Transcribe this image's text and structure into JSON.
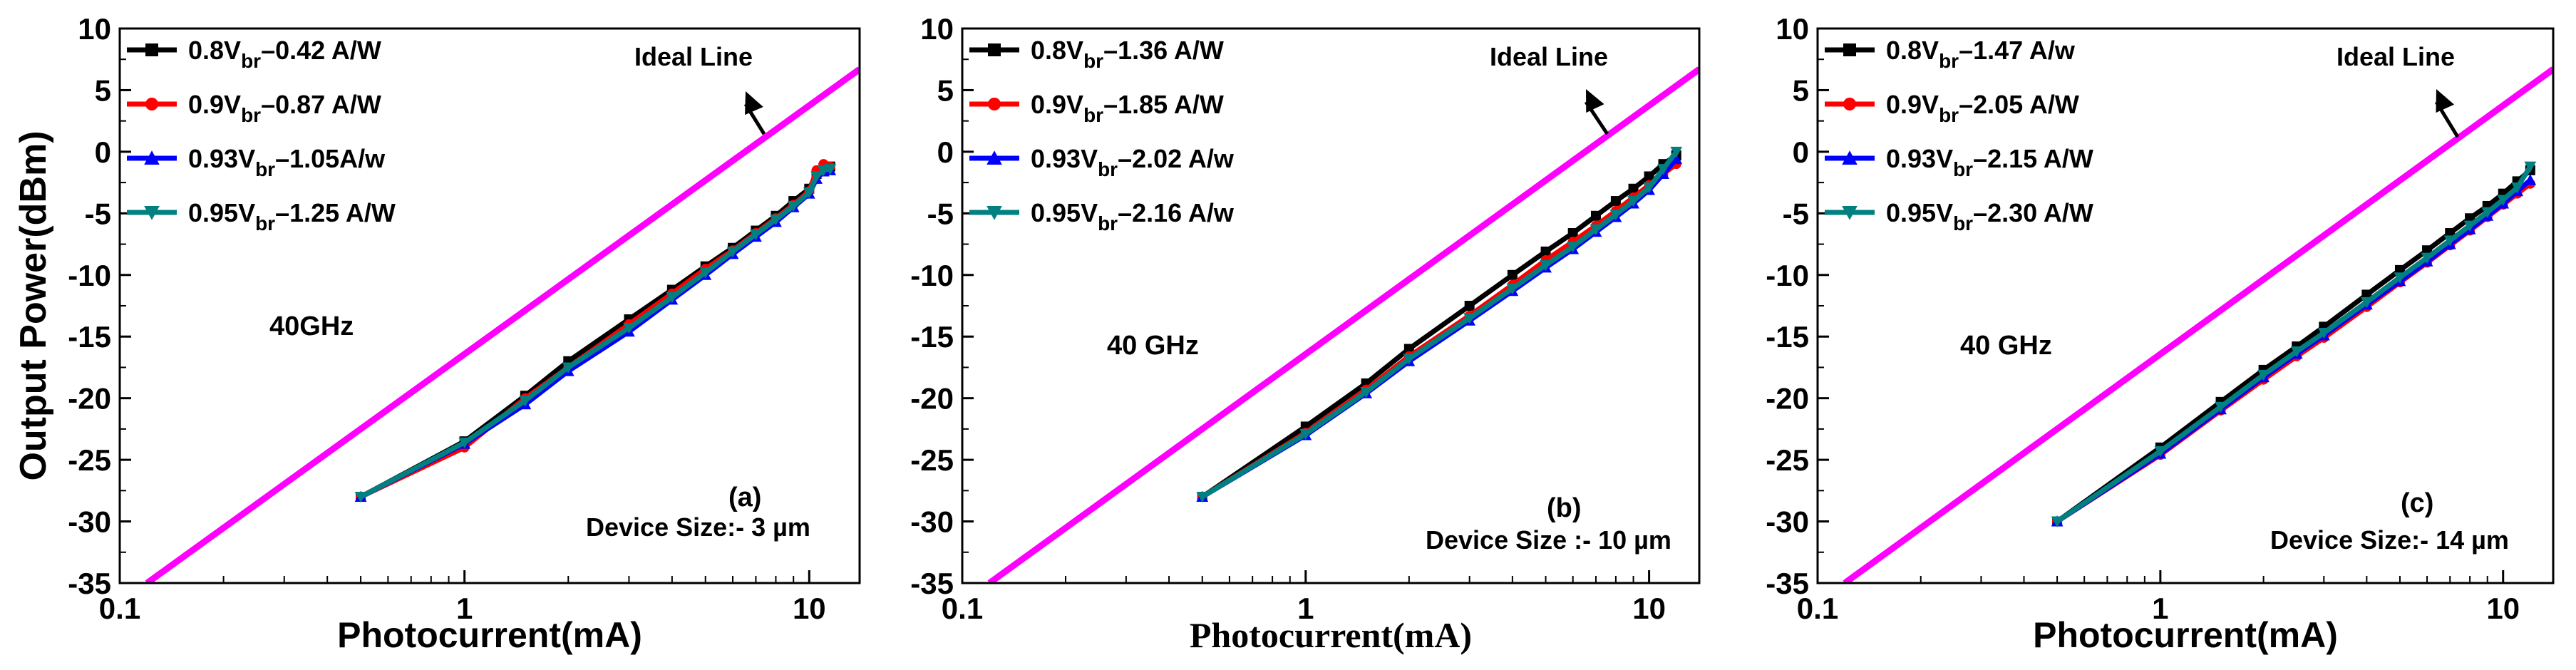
{
  "chart_data": [
    {
      "type": "line",
      "panel_label": "(a)",
      "xlabel": "Photocurrent(mA)",
      "ylabel": "Output Power(dBm)",
      "x_scale": "log",
      "xlim": [
        0.1,
        14
      ],
      "ylim": [
        -35,
        10
      ],
      "x_ticks": [
        "0.1",
        "1",
        "10"
      ],
      "y_ticks": [
        "10",
        "5",
        "0",
        "-5",
        "-10",
        "-15",
        "-20",
        "-25",
        "-30",
        "-35"
      ],
      "legend_position": "top-left",
      "frequency_text": "40GHz",
      "device_text": "Device Size:- 3 µm",
      "ideal_label": "Ideal Line",
      "ideal_line": {
        "color": "#ff00ff",
        "x": [
          0.12,
          14
        ],
        "y": [
          -35,
          6.7
        ]
      },
      "series": [
        {
          "legend": {
            "a": "0.8V",
            "sub": "br",
            "b": "–0.42 A/W"
          },
          "color": "#000000",
          "marker": "square",
          "x": [
            0.5,
            1,
            1.5,
            2,
            3,
            4,
            5,
            6,
            7,
            8,
            9,
            10,
            10.5,
            11,
            11.5
          ],
          "y": [
            -28,
            -23.5,
            -19.8,
            -17,
            -13.6,
            -11.2,
            -9.3,
            -7.8,
            -6.4,
            -5.2,
            -4,
            -3,
            -1.8,
            -1.3,
            -1.2
          ]
        },
        {
          "legend": {
            "a": "0.9V",
            "sub": "br",
            "b": "–0.87 A/W"
          },
          "color": "#ff0000",
          "marker": "circle",
          "x": [
            0.5,
            1,
            1.5,
            2,
            3,
            4,
            5,
            6,
            7,
            8,
            9,
            10,
            10.5,
            11,
            11.5
          ],
          "y": [
            -28,
            -24,
            -20,
            -17.5,
            -14,
            -11.5,
            -9.5,
            -8,
            -6.6,
            -5.4,
            -4.3,
            -3.2,
            -1.5,
            -1,
            -1.2
          ]
        },
        {
          "legend": {
            "a": "0.93V",
            "sub": "br",
            "b": "–1.05A/w"
          },
          "color": "#0000ff",
          "marker": "triangle",
          "x": [
            0.5,
            1,
            1.5,
            2,
            3,
            4,
            5,
            6,
            7,
            8,
            9,
            10,
            10.5,
            11,
            11.5
          ],
          "y": [
            -28,
            -23.7,
            -20.5,
            -17.8,
            -14.6,
            -12,
            -10,
            -8.3,
            -6.9,
            -5.7,
            -4.5,
            -3.4,
            -2.2,
            -1.6,
            -1.5
          ]
        },
        {
          "legend": {
            "a": "0.95V",
            "sub": "br",
            "b": "–1.25 A/W"
          },
          "color": "#008080",
          "marker": "triangle-down",
          "x": [
            0.5,
            1,
            1.5,
            2,
            3,
            4,
            5,
            6,
            7,
            8,
            9,
            10,
            10.5,
            11,
            11.5
          ],
          "y": [
            -28,
            -23.6,
            -20.2,
            -17.5,
            -14.3,
            -11.8,
            -9.8,
            -8.1,
            -6.7,
            -5.5,
            -4.4,
            -3.3,
            -2,
            -1.5,
            -1.4
          ]
        }
      ]
    },
    {
      "type": "line",
      "panel_label": "(b)",
      "xlabel": "Photocurrent(mA)",
      "ylabel": "",
      "x_scale": "log",
      "xlim": [
        0.1,
        14
      ],
      "ylim": [
        -35,
        10
      ],
      "x_ticks": [
        "0.1",
        "1",
        "10"
      ],
      "y_ticks": [
        "10",
        "5",
        "0",
        "-5",
        "-10",
        "-15",
        "-20",
        "-25",
        "-30",
        "-35"
      ],
      "legend_position": "top-left",
      "frequency_text": "40 GHz",
      "device_text": "Device Size :- 10 µm",
      "ideal_label": "Ideal Line",
      "ideal_line": {
        "color": "#ff00ff",
        "x": [
          0.12,
          14
        ],
        "y": [
          -35,
          6.7
        ]
      },
      "series": [
        {
          "legend": {
            "a": "0.8V",
            "sub": "br",
            "b": "–1.36 A/W"
          },
          "color": "#000000",
          "marker": "square",
          "x": [
            0.5,
            1,
            1.5,
            2,
            3,
            4,
            5,
            6,
            7,
            8,
            9,
            10,
            11,
            12
          ],
          "y": [
            -28,
            -22.3,
            -18.8,
            -16,
            -12.5,
            -10,
            -8.1,
            -6.6,
            -5.2,
            -4,
            -3,
            -2,
            -1,
            -0.3
          ]
        },
        {
          "legend": {
            "a": "0.9V",
            "sub": "br",
            "b": "–1.85 A/W"
          },
          "color": "#ff0000",
          "marker": "circle",
          "x": [
            0.5,
            1,
            1.5,
            2,
            3,
            4,
            5,
            6,
            7,
            8,
            9,
            10,
            11,
            12
          ],
          "y": [
            -28,
            -22.8,
            -19.3,
            -16.6,
            -13.3,
            -10.8,
            -8.8,
            -7.3,
            -6,
            -4.8,
            -3.7,
            -2.7,
            -1.8,
            -1
          ]
        },
        {
          "legend": {
            "a": "0.93V",
            "sub": "br",
            "b": "–2.02 A/w"
          },
          "color": "#0000ff",
          "marker": "triangle",
          "x": [
            0.5,
            1,
            1.5,
            2,
            3,
            4,
            5,
            6,
            7,
            8,
            9,
            10,
            11,
            12
          ],
          "y": [
            -28,
            -23,
            -19.6,
            -17,
            -13.7,
            -11.3,
            -9.4,
            -7.9,
            -6.5,
            -5.3,
            -4.2,
            -3.1,
            -1.8,
            -0.6
          ]
        },
        {
          "legend": {
            "a": "0.95V",
            "sub": "br",
            "b": "–2.16 A/w"
          },
          "color": "#008080",
          "marker": "triangle-down",
          "x": [
            0.5,
            1,
            1.5,
            2,
            3,
            4,
            5,
            6,
            7,
            8,
            9,
            10,
            11,
            12
          ],
          "y": [
            -28,
            -22.9,
            -19.5,
            -16.8,
            -13.5,
            -11.1,
            -9.2,
            -7.7,
            -6.3,
            -5.1,
            -4,
            -2.9,
            -1.4,
            0
          ]
        }
      ]
    },
    {
      "type": "line",
      "panel_label": "(c)",
      "xlabel": "Photocurrent(mA)",
      "ylabel": "",
      "x_scale": "log",
      "xlim": [
        0.1,
        14
      ],
      "ylim": [
        -35,
        10
      ],
      "x_ticks": [
        "0.1",
        "1",
        "10"
      ],
      "y_ticks": [
        "10",
        "5",
        "0",
        "-5",
        "-10",
        "-15",
        "-20",
        "-25",
        "-30",
        "-35"
      ],
      "legend_position": "top-left",
      "frequency_text": "40 GHz",
      "device_text": "Device Size:- 14 µm",
      "ideal_label": "Ideal Line",
      "ideal_line": {
        "color": "#ff00ff",
        "x": [
          0.12,
          14
        ],
        "y": [
          -35,
          6.7
        ]
      },
      "series": [
        {
          "legend": {
            "a": "0.8V",
            "sub": "br",
            "b": "–1.47 A/w"
          },
          "color": "#000000",
          "marker": "square",
          "x": [
            0.5,
            1,
            1.5,
            2,
            2.5,
            3,
            4,
            5,
            6,
            7,
            8,
            9,
            10,
            11,
            12
          ],
          "y": [
            -30,
            -24,
            -20.3,
            -17.7,
            -15.8,
            -14.2,
            -11.6,
            -9.6,
            -8,
            -6.6,
            -5.4,
            -4.4,
            -3.4,
            -2.4,
            -1.5
          ]
        },
        {
          "legend": {
            "a": "0.9V",
            "sub": "br",
            "b": "–2.05 A/W"
          },
          "color": "#ff0000",
          "marker": "circle",
          "x": [
            0.5,
            1,
            1.5,
            2,
            2.5,
            3,
            4,
            5,
            6,
            7,
            8,
            9,
            10,
            11,
            12
          ],
          "y": [
            -30,
            -24.6,
            -21,
            -18.5,
            -16.6,
            -15.1,
            -12.6,
            -10.6,
            -9,
            -7.6,
            -6.4,
            -5.3,
            -4.3,
            -3.4,
            -2.6
          ]
        },
        {
          "legend": {
            "a": "0.93V",
            "sub": "br",
            "b": "–2.15 A/W"
          },
          "color": "#0000ff",
          "marker": "triangle",
          "x": [
            0.5,
            1,
            1.5,
            2,
            2.5,
            3,
            4,
            5,
            6,
            7,
            8,
            9,
            10,
            11,
            12
          ],
          "y": [
            -30,
            -24.5,
            -20.9,
            -18.3,
            -16.4,
            -14.9,
            -12.4,
            -10.5,
            -8.9,
            -7.5,
            -6.3,
            -5.2,
            -4.2,
            -3.2,
            -2.3
          ]
        },
        {
          "legend": {
            "a": "0.95V",
            "sub": "br",
            "b": "–2.30 A/W"
          },
          "color": "#008080",
          "marker": "triangle-down",
          "x": [
            0.5,
            1,
            1.5,
            2,
            2.5,
            3,
            4,
            5,
            6,
            7,
            8,
            9,
            10,
            11,
            12
          ],
          "y": [
            -30,
            -24.3,
            -20.7,
            -18.1,
            -16.2,
            -14.7,
            -12.2,
            -10.2,
            -8.6,
            -7.2,
            -6,
            -4.9,
            -3.9,
            -2.9,
            -1.2
          ]
        }
      ]
    }
  ]
}
